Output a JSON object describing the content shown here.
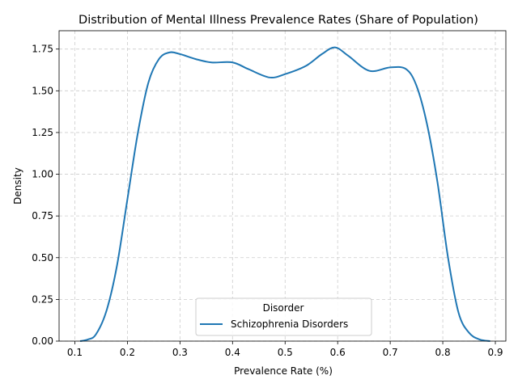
{
  "chart_data": {
    "type": "line",
    "title": "Distribution of Mental Illness Prevalence Rates (Share of Population)",
    "xlabel": "Prevalence Rate (%)",
    "ylabel": "Density",
    "xlim": [
      0.07,
      0.92
    ],
    "ylim": [
      0,
      1.86
    ],
    "xticks": [
      0.1,
      0.2,
      0.3,
      0.4,
      0.5,
      0.6,
      0.7,
      0.8,
      0.9
    ],
    "xtick_labels": [
      "0.1",
      "0.2",
      "0.3",
      "0.4",
      "0.5",
      "0.6",
      "0.7",
      "0.8",
      "0.9"
    ],
    "yticks": [
      0,
      0.25,
      0.5,
      0.75,
      1.0,
      1.25,
      1.5,
      1.75
    ],
    "ytick_labels": [
      "0.00",
      "0.25",
      "0.50",
      "0.75",
      "1.00",
      "1.25",
      "1.50",
      "1.75"
    ],
    "grid": true,
    "legend": {
      "title": "Disorder",
      "placement": "lower center"
    },
    "series": [
      {
        "name": "Schizophrenia Disorders",
        "color": "#1f77b4",
        "x": [
          0.11,
          0.125,
          0.14,
          0.16,
          0.18,
          0.2,
          0.22,
          0.24,
          0.26,
          0.28,
          0.3,
          0.33,
          0.36,
          0.4,
          0.43,
          0.47,
          0.5,
          0.54,
          0.57,
          0.595,
          0.62,
          0.66,
          0.7,
          0.73,
          0.75,
          0.77,
          0.79,
          0.81,
          0.83,
          0.85,
          0.87,
          0.89
        ],
        "values": [
          0.0,
          0.01,
          0.04,
          0.18,
          0.45,
          0.85,
          1.25,
          1.55,
          1.69,
          1.73,
          1.72,
          1.69,
          1.67,
          1.67,
          1.63,
          1.58,
          1.6,
          1.65,
          1.72,
          1.76,
          1.71,
          1.62,
          1.64,
          1.63,
          1.53,
          1.3,
          0.95,
          0.5,
          0.17,
          0.05,
          0.01,
          0.0
        ]
      }
    ]
  }
}
